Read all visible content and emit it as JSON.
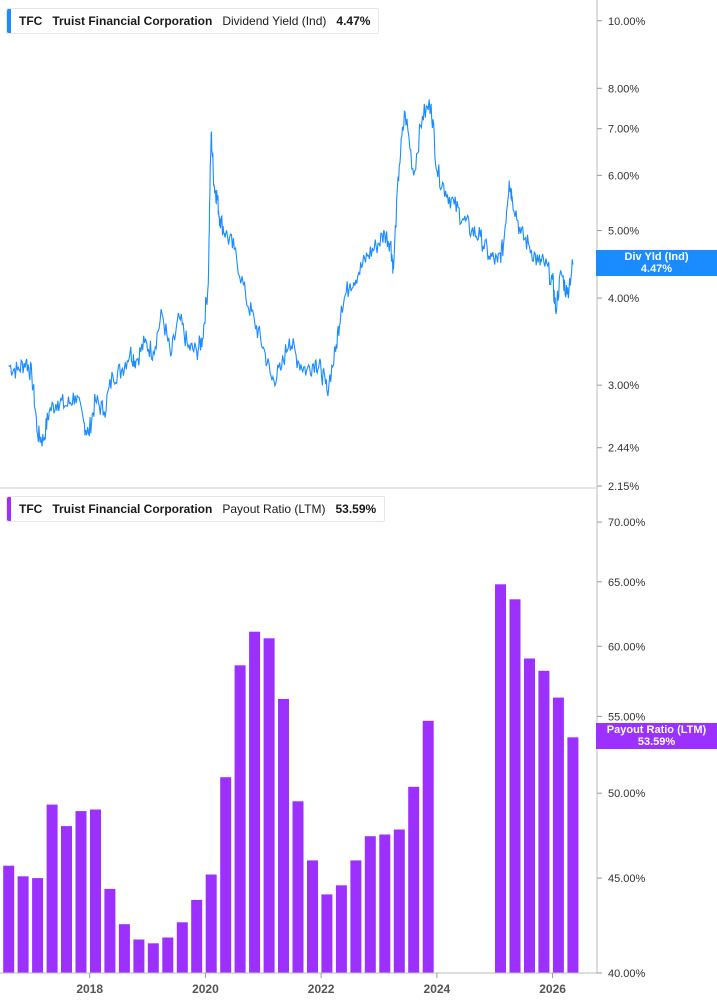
{
  "chart_data": [
    {
      "type": "line",
      "ticker": "TFC",
      "company": "Truist Financial Corporation",
      "metric": "Dividend Yield (Ind)",
      "current_value": "4.47%",
      "badge_label": "Div Yld (Ind)",
      "badge_value": "4.47%",
      "color": "#1a8cff",
      "scale": "log",
      "ylim": [
        2.15,
        10.5
      ],
      "y_ticks": [
        "10.00%",
        "8.00%",
        "7.00%",
        "6.00%",
        "5.00%",
        "4.00%",
        "3.00%",
        "2.44%",
        "2.15%"
      ],
      "y_tick_values": [
        10.0,
        8.0,
        7.0,
        6.0,
        5.0,
        4.0,
        3.0,
        2.44,
        2.15
      ],
      "x": [
        2016.6,
        2016.75,
        2016.9,
        2017.0,
        2017.1,
        2017.2,
        2017.3,
        2017.45,
        2017.6,
        2017.75,
        2017.9,
        2017.98,
        2018.1,
        2018.25,
        2018.4,
        2018.55,
        2018.7,
        2018.8,
        2018.95,
        2019.1,
        2019.25,
        2019.4,
        2019.55,
        2019.7,
        2019.85,
        2019.95,
        2020.05,
        2020.1,
        2020.15,
        2020.2,
        2020.25,
        2020.35,
        2020.5,
        2020.7,
        2020.85,
        2021.0,
        2021.15,
        2021.3,
        2021.45,
        2021.6,
        2021.75,
        2021.9,
        2022.0,
        2022.1,
        2022.25,
        2022.35,
        2022.5,
        2022.65,
        2022.8,
        2022.95,
        2023.1,
        2023.2,
        2023.25,
        2023.35,
        2023.45,
        2023.6,
        2023.75,
        2023.9,
        2024.0,
        2024.15,
        2024.3,
        2024.45,
        2024.6,
        2024.75,
        2024.9,
        2025.05,
        2025.15,
        2025.25,
        2025.3,
        2025.45,
        2025.6,
        2025.75,
        2025.85,
        2026.0,
        2026.05,
        2026.15,
        2026.25,
        2026.35
      ],
      "y": [
        3.2,
        3.15,
        3.25,
        3.1,
        2.55,
        2.5,
        2.75,
        2.85,
        2.8,
        2.9,
        2.65,
        2.55,
        2.85,
        2.75,
        3.1,
        3.15,
        3.35,
        3.25,
        3.45,
        3.35,
        3.8,
        3.3,
        3.75,
        3.4,
        3.35,
        3.5,
        4.2,
        6.9,
        5.8,
        5.6,
        5.2,
        4.95,
        4.7,
        4.0,
        3.7,
        3.4,
        3.05,
        3.15,
        3.5,
        3.25,
        3.15,
        3.25,
        3.15,
        2.95,
        3.35,
        3.9,
        4.2,
        4.35,
        4.6,
        4.75,
        4.95,
        4.8,
        4.4,
        6.2,
        7.4,
        6.0,
        7.3,
        7.6,
        6.1,
        5.7,
        5.45,
        5.2,
        5.0,
        4.9,
        4.6,
        4.5,
        4.75,
        5.9,
        5.6,
        4.95,
        4.75,
        4.5,
        4.5,
        4.25,
        3.85,
        4.35,
        4.05,
        4.47
      ]
    },
    {
      "type": "bar",
      "ticker": "TFC",
      "company": "Truist Financial Corporation",
      "metric": "Payout Ratio (LTM)",
      "current_value": "53.59%",
      "badge_label": "Payout Ratio (LTM)",
      "badge_value": "53.59%",
      "color": "#9b30ff",
      "scale": "log",
      "ylim": [
        40.0,
        71.5
      ],
      "y_ticks": [
        "70.00%",
        "65.00%",
        "60.00%",
        "55.00%",
        "50.00%",
        "45.00%",
        "40.00%"
      ],
      "y_tick_values": [
        70.0,
        65.0,
        60.0,
        55.0,
        50.0,
        45.0,
        40.0
      ],
      "x": [
        2016.6,
        2016.85,
        2017.1,
        2017.35,
        2017.6,
        2017.85,
        2018.1,
        2018.35,
        2018.6,
        2018.85,
        2019.1,
        2019.35,
        2019.6,
        2019.85,
        2020.1,
        2020.35,
        2020.6,
        2020.85,
        2021.1,
        2021.35,
        2021.6,
        2021.85,
        2022.1,
        2022.35,
        2022.6,
        2022.85,
        2023.1,
        2023.35,
        2023.6,
        2023.85,
        2025.1,
        2025.35,
        2025.6,
        2025.85,
        2026.1,
        2026.35
      ],
      "values": [
        45.7,
        45.1,
        45.0,
        49.3,
        48.0,
        48.9,
        49.0,
        44.4,
        42.5,
        41.7,
        41.5,
        41.8,
        42.6,
        43.8,
        45.2,
        51.0,
        58.6,
        61.1,
        60.6,
        56.2,
        49.5,
        46.0,
        44.1,
        44.6,
        46.0,
        47.4,
        47.5,
        47.8,
        50.4,
        54.7,
        64.8,
        63.6,
        59.1,
        58.2,
        56.3,
        53.59
      ]
    }
  ],
  "x_axis": {
    "ticks": [
      "2018",
      "2020",
      "2022",
      "2024",
      "2026"
    ],
    "tick_values": [
      2018,
      2020,
      2022,
      2024,
      2026
    ],
    "range": [
      2016.45,
      2026.75
    ]
  }
}
